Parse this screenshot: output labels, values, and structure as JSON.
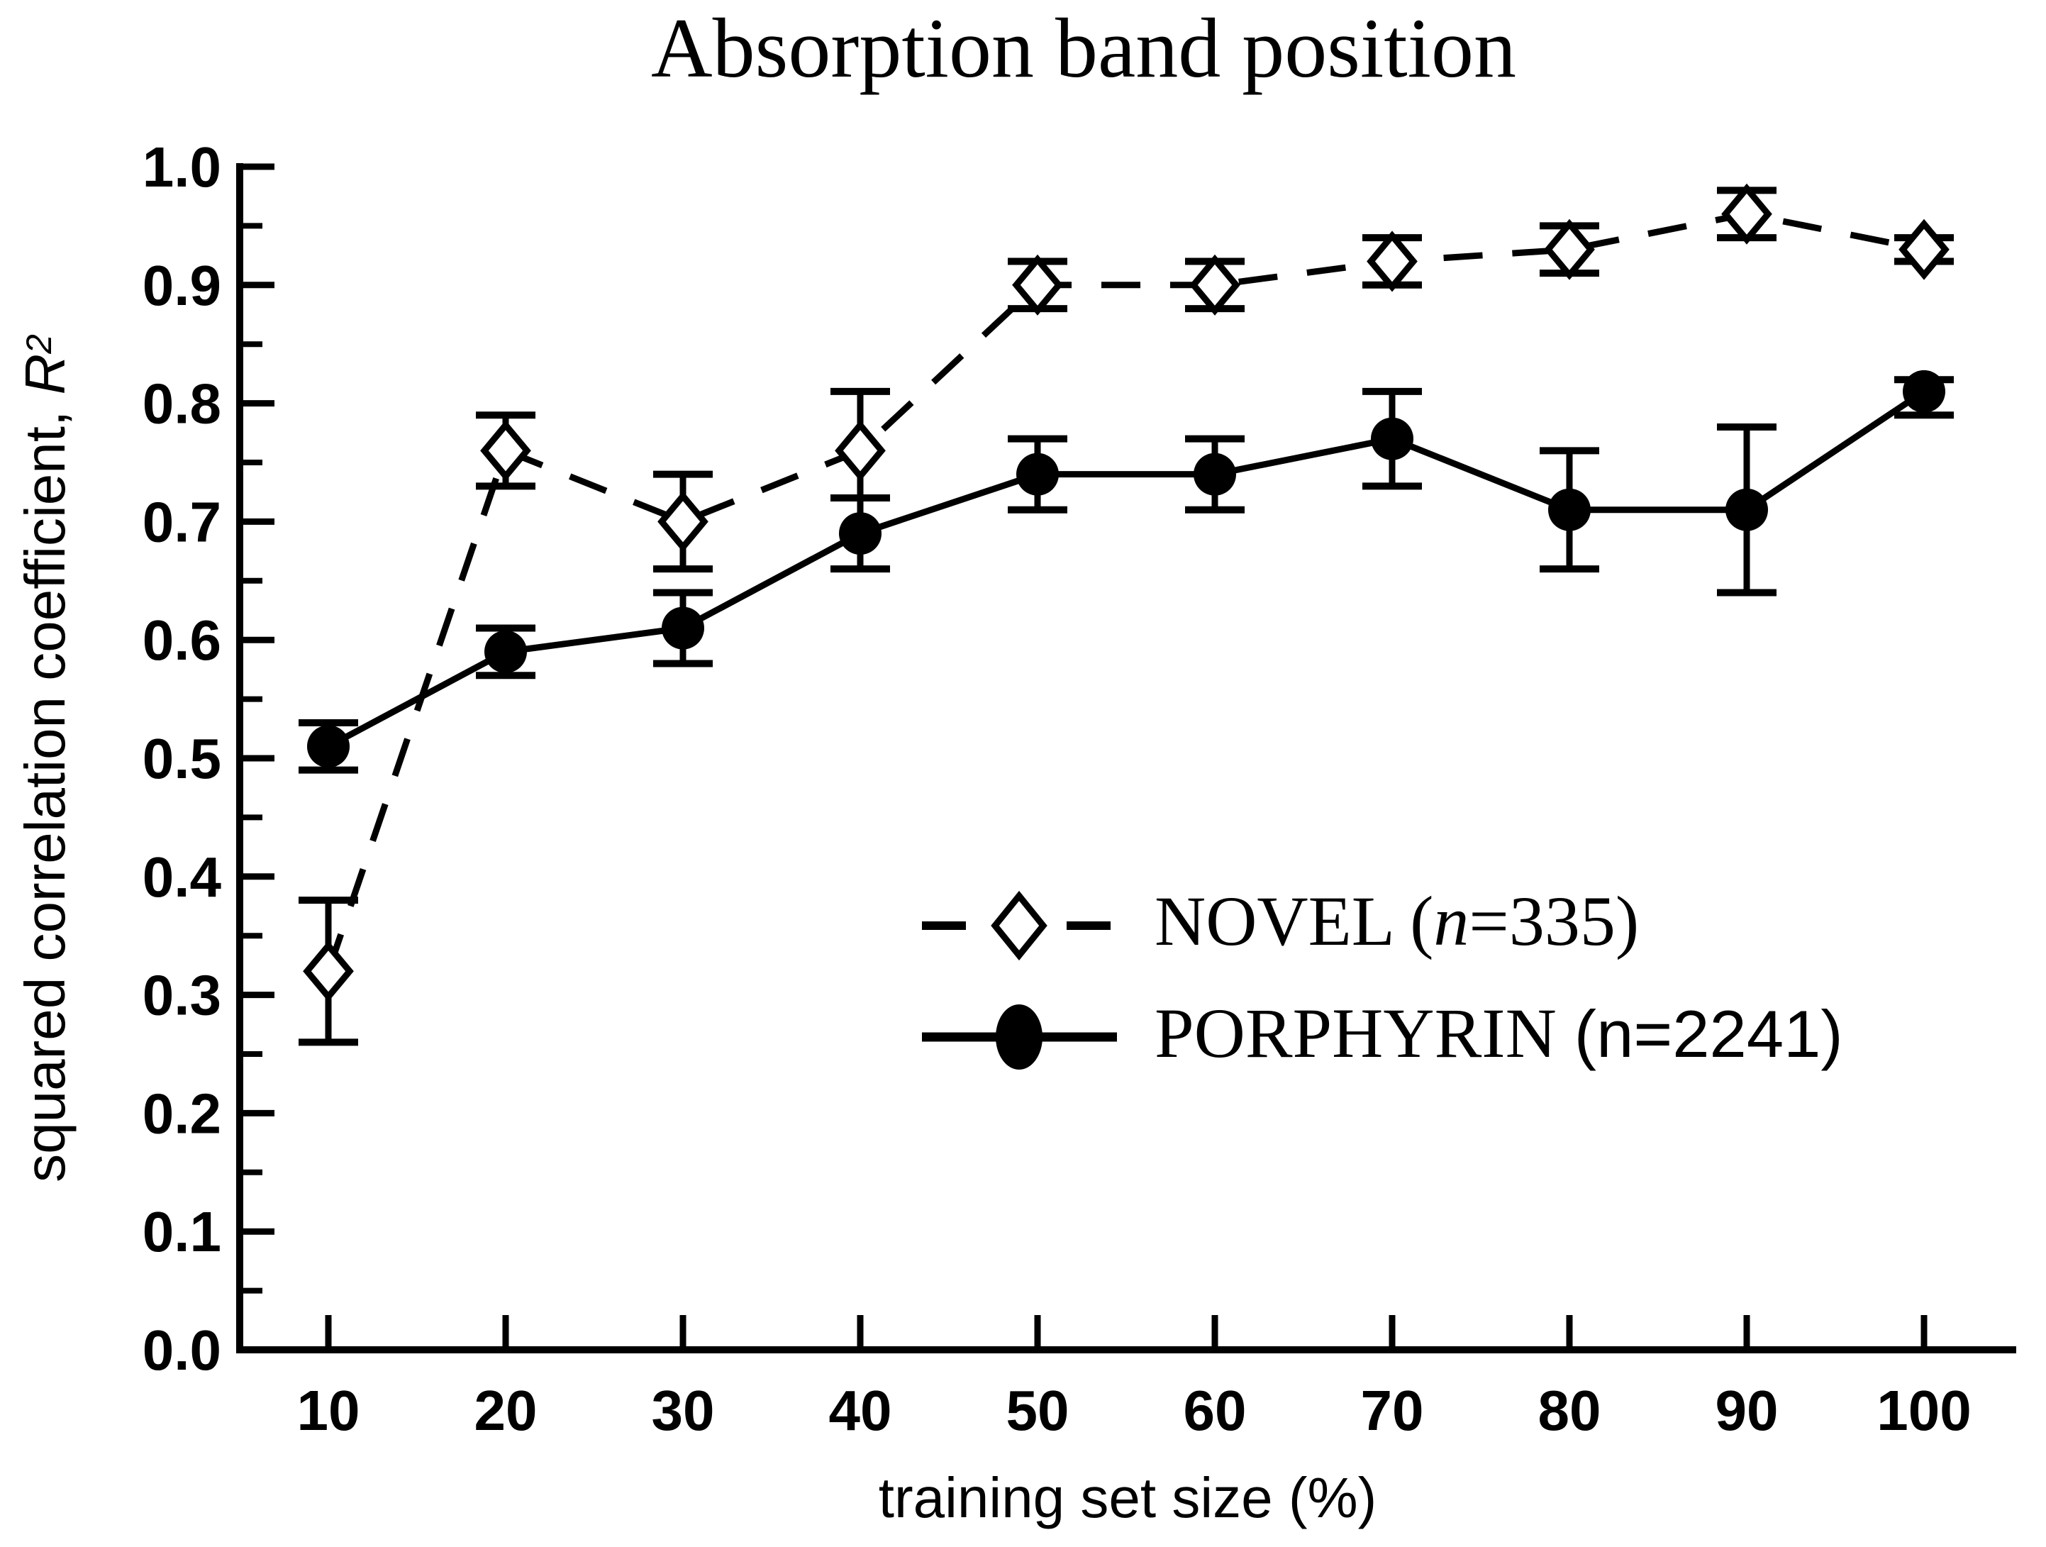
{
  "figure": {
    "title": "Absorption band position",
    "background_color": "#ffffff",
    "ink_color": "#000000"
  },
  "axes": {
    "x_label": "training set size (%)",
    "y_label_text": "squared correlation coefficient, ",
    "y_label_var": "R",
    "y_label_exp": "2",
    "x_tick_labels": [
      "10",
      "20",
      "30",
      "40",
      "50",
      "60",
      "70",
      "80",
      "90",
      "100"
    ],
    "y_tick_labels": [
      "0.0",
      "0.1",
      "0.2",
      "0.3",
      "0.4",
      "0.5",
      "0.6",
      "0.7",
      "0.8",
      "0.9",
      "1.0"
    ]
  },
  "legend": {
    "novel": {
      "pre": "NOVEL (",
      "var": "n",
      "post": "=335)"
    },
    "porphyrin": {
      "pre": "PORPHYRIN ",
      "paren": "(n=2241)"
    }
  },
  "chart_data": {
    "type": "line",
    "title": "Absorption band position",
    "xlabel": "training set size (%)",
    "ylabel": "squared correlation coefficient, R^2",
    "x": [
      10,
      20,
      30,
      40,
      50,
      60,
      70,
      80,
      90,
      100
    ],
    "xlim": [
      5,
      105
    ],
    "ylim": [
      0.0,
      1.0
    ],
    "x_major_tick_step": 10,
    "x_minor_tick_step": 5,
    "y_major_tick_step": 0.1,
    "y_minor_tick_step": 0.05,
    "grid": false,
    "legend_position": "center-right",
    "series": [
      {
        "name": "NOVEL (n=335)",
        "marker": "open-diamond",
        "line_style": "dashed",
        "values": [
          0.32,
          0.76,
          0.7,
          0.76,
          0.9,
          0.9,
          0.92,
          0.93,
          0.96,
          0.93
        ],
        "err_lo": [
          0.26,
          0.73,
          0.66,
          0.72,
          0.88,
          0.88,
          0.9,
          0.91,
          0.94,
          0.92
        ],
        "err_hi": [
          0.38,
          0.79,
          0.74,
          0.81,
          0.92,
          0.92,
          0.94,
          0.95,
          0.98,
          0.94
        ]
      },
      {
        "name": "PORPHYRIN (n=2241)",
        "marker": "filled-circle",
        "line_style": "solid",
        "values": [
          0.51,
          0.59,
          0.61,
          0.69,
          0.74,
          0.74,
          0.77,
          0.71,
          0.71,
          0.81
        ],
        "err_lo": [
          0.49,
          0.57,
          0.58,
          0.66,
          0.71,
          0.71,
          0.73,
          0.66,
          0.64,
          0.79
        ],
        "err_hi": [
          0.53,
          0.61,
          0.64,
          0.72,
          0.77,
          0.77,
          0.81,
          0.76,
          0.78,
          0.82
        ]
      }
    ]
  }
}
